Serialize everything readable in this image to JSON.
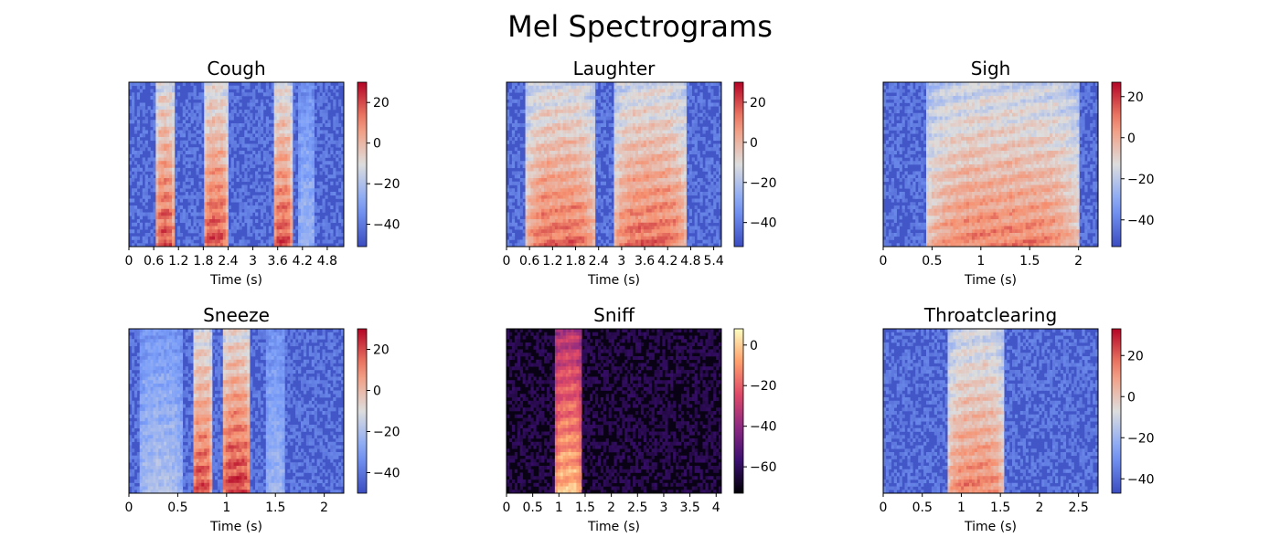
{
  "figure": {
    "title": "Mel Spectrograms"
  },
  "colors": {
    "background": "#ffffff",
    "text": "#000000",
    "coolwarm_low": "#3b4cc0",
    "coolwarm_mid": "#dddddd",
    "coolwarm_high": "#b40426"
  },
  "chart_data": [
    {
      "type": "heatmap",
      "title": "Cough",
      "xlabel": "Time (s)",
      "xticks": [
        "0",
        "0.6",
        "1.2",
        "1.8",
        "2.4",
        "3",
        "3.6",
        "4.2",
        "4.8"
      ],
      "xtick_values": [
        0,
        0.6,
        1.2,
        1.8,
        2.4,
        3,
        3.6,
        4.2,
        4.8
      ],
      "xlim": [
        0,
        5.2
      ],
      "colormap": "coolwarm",
      "color_range": [
        -51,
        30
      ],
      "colorbar_ticks": [
        "20",
        "0",
        "−20",
        "−40"
      ],
      "colorbar_values": [
        20,
        0,
        -20,
        -40
      ],
      "events": [
        {
          "start": 0.65,
          "end": 1.1,
          "strength": 0.85
        },
        {
          "start": 1.8,
          "end": 2.4,
          "strength": 0.85
        },
        {
          "start": 3.5,
          "end": 3.95,
          "strength": 0.85
        },
        {
          "start": 4.1,
          "end": 4.5,
          "strength": 0.3
        }
      ]
    },
    {
      "type": "heatmap",
      "title": "Laughter",
      "xlabel": "Time (s)",
      "xticks": [
        "0",
        "0.6",
        "1.2",
        "1.8",
        "2.4",
        "3",
        "3.6",
        "4.2",
        "4.8",
        "5.4"
      ],
      "xtick_values": [
        0,
        0.6,
        1.2,
        1.8,
        2.4,
        3,
        3.6,
        4.2,
        4.8,
        5.4
      ],
      "xlim": [
        0,
        5.6
      ],
      "colormap": "coolwarm",
      "color_range": [
        -52,
        30
      ],
      "colorbar_ticks": [
        "20",
        "0",
        "−20",
        "−40"
      ],
      "colorbar_values": [
        20,
        0,
        -20,
        -40
      ],
      "events": [
        {
          "start": 0.5,
          "end": 2.3,
          "strength": 0.8
        },
        {
          "start": 2.8,
          "end": 4.7,
          "strength": 0.8
        }
      ]
    },
    {
      "type": "heatmap",
      "title": "Sigh",
      "xlabel": "Time (s)",
      "xticks": [
        "0",
        "0.5",
        "1",
        "1.5",
        "2"
      ],
      "xtick_values": [
        0,
        0.5,
        1,
        1.5,
        2
      ],
      "xlim": [
        0,
        2.2
      ],
      "colormap": "coolwarm",
      "color_range": [
        -53,
        27
      ],
      "colorbar_ticks": [
        "20",
        "0",
        "−20",
        "−40"
      ],
      "colorbar_values": [
        20,
        0,
        -20,
        -40
      ],
      "events": [
        {
          "start": 0.45,
          "end": 2.0,
          "strength": 0.75
        }
      ]
    },
    {
      "type": "heatmap",
      "title": "Sneeze",
      "xlabel": "Time (s)",
      "xticks": [
        "0",
        "0.5",
        "1",
        "1.5",
        "2"
      ],
      "xtick_values": [
        0,
        0.5,
        1,
        1.5,
        2
      ],
      "xlim": [
        0,
        2.2
      ],
      "colormap": "coolwarm",
      "color_range": [
        -50,
        30
      ],
      "colorbar_ticks": [
        "20",
        "0",
        "−20",
        "−40"
      ],
      "colorbar_values": [
        20,
        0,
        -20,
        -40
      ],
      "events": [
        {
          "start": 0.1,
          "end": 0.55,
          "strength": 0.35
        },
        {
          "start": 0.65,
          "end": 0.85,
          "strength": 0.85
        },
        {
          "start": 0.95,
          "end": 1.25,
          "strength": 0.9
        },
        {
          "start": 1.4,
          "end": 1.6,
          "strength": 0.3
        }
      ]
    },
    {
      "type": "heatmap",
      "title": "Sniff",
      "xlabel": "Time (s)",
      "xticks": [
        "0",
        "0.5",
        "1",
        "1.5",
        "2",
        "2.5",
        "3",
        "3.5",
        "4"
      ],
      "xtick_values": [
        0,
        0.5,
        1,
        1.5,
        2,
        2.5,
        3,
        3.5,
        4
      ],
      "xlim": [
        0,
        4.1
      ],
      "colormap": "magma",
      "color_range": [
        -73,
        8
      ],
      "colorbar_ticks": [
        "0",
        "−20",
        "−40",
        "−60"
      ],
      "colorbar_values": [
        0,
        -20,
        -40,
        -60
      ],
      "events": [
        {
          "start": 0.9,
          "end": 1.45,
          "strength": 0.85
        }
      ]
    },
    {
      "type": "heatmap",
      "title": "Throatclearing",
      "xlabel": "Time (s)",
      "xticks": [
        "0",
        "0.5",
        "1",
        "1.5",
        "2",
        "2.5"
      ],
      "xtick_values": [
        0,
        0.5,
        1,
        1.5,
        2,
        2.5
      ],
      "xlim": [
        0,
        2.75
      ],
      "colormap": "coolwarm",
      "color_range": [
        -47,
        33
      ],
      "colorbar_ticks": [
        "20",
        "0",
        "−20",
        "−40"
      ],
      "colorbar_values": [
        20,
        0,
        -20,
        -40
      ],
      "events": [
        {
          "start": 0.82,
          "end": 1.55,
          "strength": 0.75
        }
      ]
    }
  ]
}
